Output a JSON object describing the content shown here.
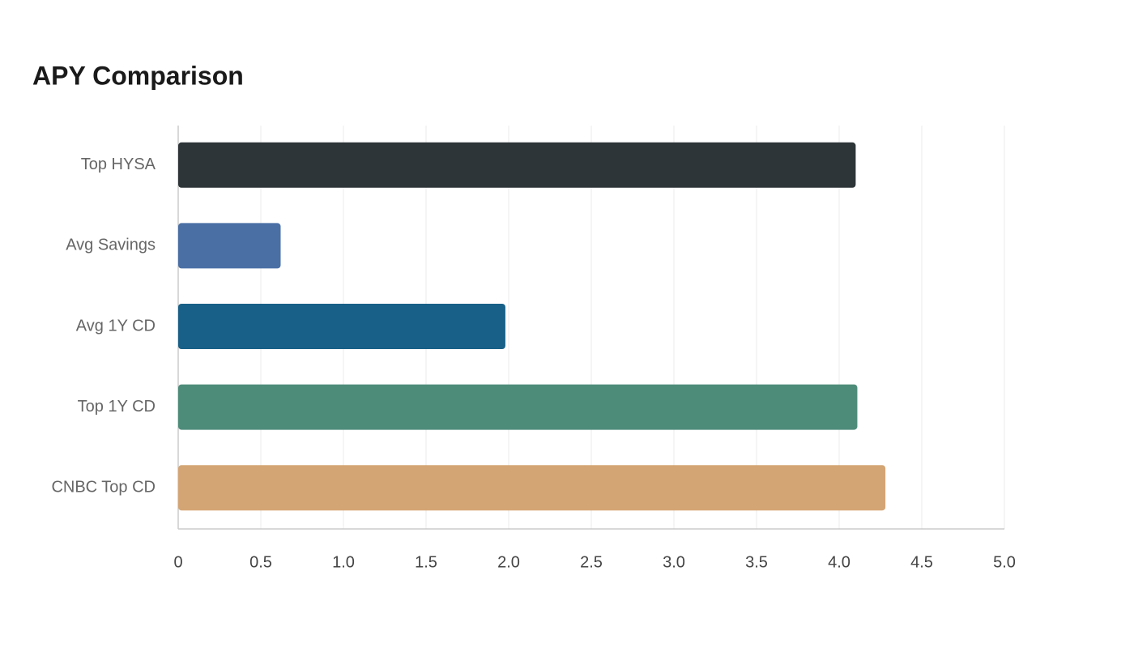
{
  "chart_data": {
    "type": "bar",
    "orientation": "horizontal",
    "title": "APY Comparison",
    "categories": [
      "Top HYSA",
      "Avg Savings",
      "Avg 1Y CD",
      "Top 1Y CD",
      "CNBC Top CD"
    ],
    "values": [
      4.1,
      0.62,
      1.98,
      4.11,
      4.28
    ],
    "colors": [
      "#2e3538",
      "#4a6fa5",
      "#186087",
      "#4e8c7a",
      "#d4a574"
    ],
    "xlim": [
      0,
      5
    ],
    "xticks": [
      0,
      0.5,
      {
        "value": 1,
        "label": "1.0"
      },
      1.5,
      {
        "value": 2,
        "label": "2.0"
      },
      2.5,
      {
        "value": 3,
        "label": "3.0"
      },
      3.5,
      {
        "value": 4,
        "label": "4.0"
      },
      4.5,
      {
        "value": 5,
        "label": "5.0"
      }
    ],
    "grid": true
  }
}
